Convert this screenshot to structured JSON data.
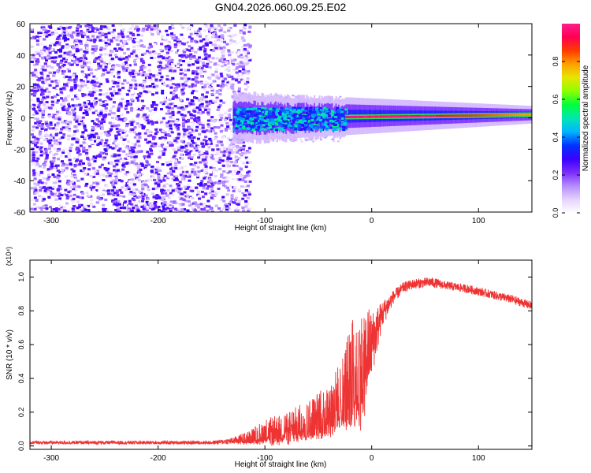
{
  "title": "GN04.2026.060.09.25.E02",
  "chart_data": [
    {
      "type": "heatmap",
      "xlabel": "Height of straight line (km)",
      "ylabel": "Frequency (Hz)",
      "xlim": [
        -320,
        150
      ],
      "ylim": [
        -60,
        60
      ],
      "xticks": [
        -300,
        -200,
        -100,
        0,
        100
      ],
      "yticks": [
        -60,
        -40,
        -20,
        0,
        20,
        40,
        60
      ],
      "colorbar": {
        "label": "Normalized spectral amplitude",
        "range": [
          0,
          1
        ],
        "ticks": [
          "0.0",
          "0.2",
          "0.4",
          "0.6",
          "0.8"
        ],
        "colors": [
          "#ffffff",
          "#e6d2ff",
          "#b48cff",
          "#7b2cff",
          "#3a00ff",
          "#0033ff",
          "#00b4ff",
          "#00e6b4",
          "#00ff3c",
          "#8cff00",
          "#e6e600",
          "#ffa000",
          "#ff3c00",
          "#ff0050",
          "#ff1e8c"
        ]
      },
      "regions": [
        {
          "name": "noise",
          "x": [
            -320,
            -115
          ],
          "freq_range": [
            -60,
            60
          ],
          "amplitude": 0.12
        },
        {
          "name": "transition",
          "x": [
            -130,
            -25
          ],
          "freq_range": [
            -10,
            10
          ],
          "amplitude": 0.35
        },
        {
          "name": "signal",
          "x": [
            -25,
            150
          ],
          "center_freq": [
            0.5,
            2
          ],
          "amplitude": 1.0
        }
      ]
    },
    {
      "type": "line",
      "xlabel": "Height of straight line (km)",
      "ylabel": "SNR (10 * v/v)",
      "multiplier": "(x10⁴)",
      "xlim": [
        -320,
        150
      ],
      "ylim": [
        -0.02,
        1.1
      ],
      "xticks": [
        -300,
        -200,
        -100,
        0,
        100
      ],
      "yticks": [
        "0.0",
        "0.2",
        "0.4",
        "0.6",
        "0.8",
        "1.0"
      ],
      "color": "#ee3333",
      "series": [
        {
          "name": "SNR",
          "x": [
            -320,
            -250,
            -200,
            -150,
            -130,
            -115,
            -100,
            -80,
            -60,
            -40,
            -30,
            -20,
            -15,
            -10,
            -5,
            0,
            10,
            20,
            30,
            40,
            55,
            70,
            90,
            110,
            130,
            150
          ],
          "y": [
            0.02,
            0.02,
            0.02,
            0.02,
            0.03,
            0.05,
            0.08,
            0.1,
            0.15,
            0.22,
            0.3,
            0.4,
            0.5,
            0.45,
            0.55,
            0.6,
            0.78,
            0.88,
            0.94,
            0.96,
            0.97,
            0.95,
            0.93,
            0.9,
            0.87,
            0.83
          ],
          "noise_amplitude": [
            0.01,
            0.01,
            0.01,
            0.01,
            0.02,
            0.04,
            0.08,
            0.1,
            0.12,
            0.15,
            0.2,
            0.3,
            0.4,
            0.35,
            0.3,
            0.2,
            0.08,
            0.04,
            0.03,
            0.03,
            0.03,
            0.025,
            0.025,
            0.025,
            0.025,
            0.025
          ]
        }
      ]
    }
  ]
}
